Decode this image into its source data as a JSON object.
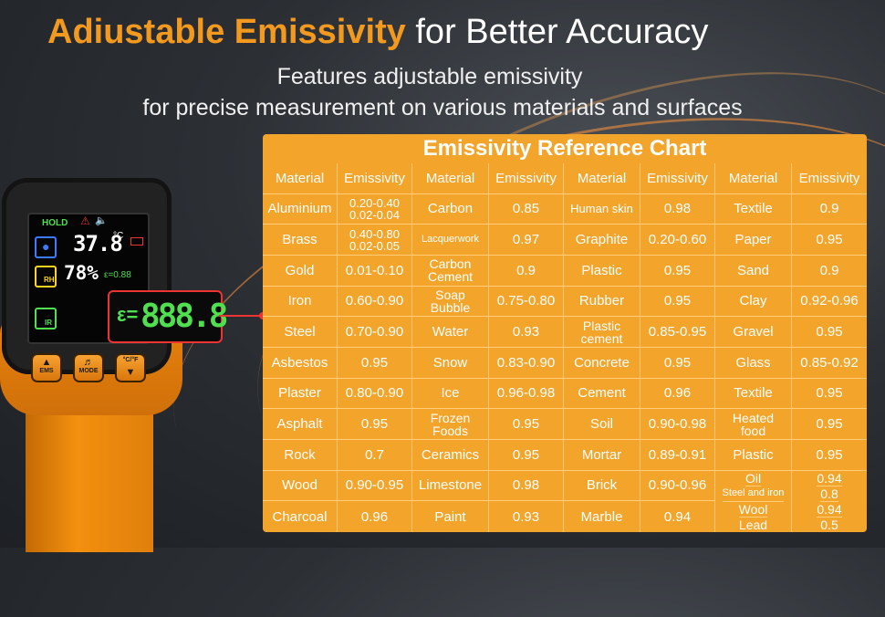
{
  "headline": {
    "highlight": "Adiustable Emissivity",
    "rest": "for Better Accuracy"
  },
  "subtitle": {
    "line1": "Features adjustable emissivity",
    "line2": "for precise measurement on various materials and surfaces"
  },
  "device": {
    "hold": "HOLD",
    "temp": "37.8",
    "temp_unit": "°C",
    "humidity": "78%",
    "eps_small": "ε=0.88",
    "rh_label": "RH",
    "ir_label": "IR",
    "buttons": {
      "ems": "EMS",
      "mode": "MODE",
      "unit": "°C/°F"
    }
  },
  "callout": {
    "symbol": "ε=",
    "digits": "888.8"
  },
  "colors": {
    "accent": "#f39a1e",
    "table_bg": "#f2a52a",
    "lcd_green": "#4fe04f",
    "leader_red": "#e33333"
  },
  "chart": {
    "title": "Emissivity Reference Chart",
    "headers": [
      "Material",
      "Emissivity",
      "Material",
      "Emissivity",
      "Material",
      "Emissivity",
      "Material",
      "Emissivity"
    ],
    "rows": [
      [
        "Aluminium",
        "0.20-0.40\n0.02-0.04",
        "Carbon",
        "0.85",
        "Human skin",
        "0.98",
        "Textile",
        "0.9"
      ],
      [
        "Brass",
        "0.40-0.80\n0.02-0.05",
        "Lacquerwork",
        "0.97",
        "Graphite",
        "0.20-0.60",
        "Paper",
        "0.95"
      ],
      [
        "Gold",
        "0.01-0.10",
        "Carbon\nCement",
        "0.9",
        "Plastic",
        "0.95",
        "Sand",
        "0.9"
      ],
      [
        "Iron",
        "0.60-0.90",
        "Soap\nBubble",
        "0.75-0.80",
        "Rubber",
        "0.95",
        "Clay",
        "0.92-0.96"
      ],
      [
        "Steel",
        "0.70-0.90",
        "Water",
        "0.93",
        "Plastic\ncement",
        "0.85-0.95",
        "Gravel",
        "0.95"
      ],
      [
        "Asbestos",
        "0.95",
        "Snow",
        "0.83-0.90",
        "Concrete",
        "0.95",
        "Glass",
        "0.85-0.92"
      ],
      [
        "Plaster",
        "0.80-0.90",
        "Ice",
        "0.96-0.98",
        "Cement",
        "0.96",
        "Textile",
        "0.95"
      ],
      [
        "Asphalt",
        "0.95",
        "Frozen\nFoods",
        "0.95",
        "Soil",
        "0.90-0.98",
        "Heated\nfood",
        "0.95"
      ],
      [
        "Rock",
        "0.7",
        "Ceramics",
        "0.95",
        "Mortar",
        "0.89-0.91",
        "Plastic",
        "0.95"
      ],
      [
        "Wood",
        "0.90-0.95",
        "Limestone",
        "0.98",
        "Brick",
        "0.90-0.96",
        "",
        ""
      ],
      [
        "Charcoal",
        "0.96",
        "Paint",
        "0.93",
        "Marble",
        "0.94",
        "",
        ""
      ]
    ],
    "stack_materials": [
      "Oil",
      "Steel and iron",
      "Wool",
      "Lead"
    ],
    "stack_values": [
      "0.94",
      "0.8",
      "0.94",
      "0.5"
    ]
  }
}
